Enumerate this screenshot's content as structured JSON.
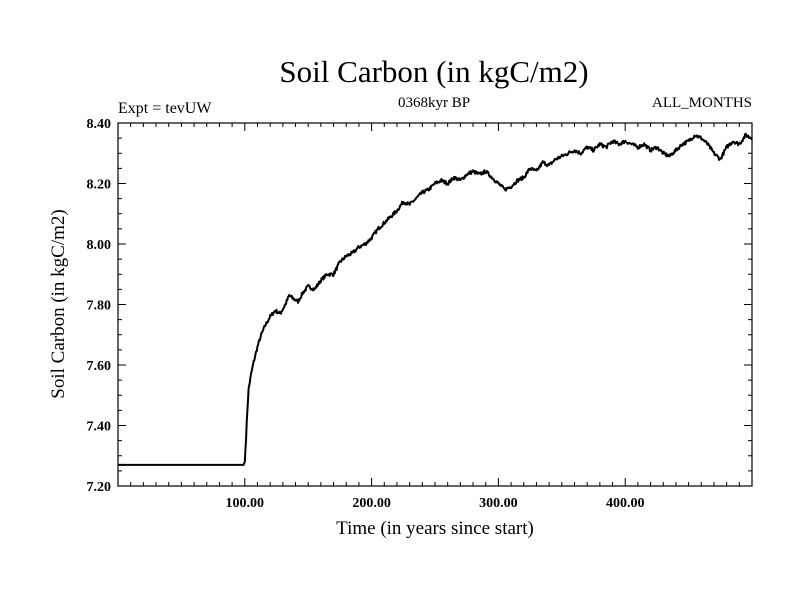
{
  "chart_data": {
    "type": "line",
    "title": "Soil Carbon (in kgC/m2)",
    "subtitle_left": "Expt = tevUW",
    "subtitle_center": "0368kyr BP",
    "subtitle_right": "ALL_MONTHS",
    "xlabel": "Time (in years since start)",
    "ylabel": "Soil Carbon (in kgC/m2)",
    "xlim": [
      0,
      500
    ],
    "ylim": [
      7.2,
      8.4
    ],
    "x_ticks": [
      {
        "value": 100,
        "label": "100.00"
      },
      {
        "value": 200,
        "label": "200.00"
      },
      {
        "value": 300,
        "label": "300.00"
      },
      {
        "value": 400,
        "label": "400.00"
      }
    ],
    "y_ticks": [
      {
        "value": 7.2,
        "label": "7.20"
      },
      {
        "value": 7.4,
        "label": "7.40"
      },
      {
        "value": 7.6,
        "label": "7.60"
      },
      {
        "value": 7.8,
        "label": "7.80"
      },
      {
        "value": 8.0,
        "label": "8.00"
      },
      {
        "value": 8.2,
        "label": "8.20"
      },
      {
        "value": 8.4,
        "label": "8.40"
      }
    ],
    "series": [
      {
        "name": "Soil Carbon",
        "color": "#000000",
        "x": [
          0,
          99,
          100,
          101,
          102,
          103,
          105,
          107,
          110,
          113,
          116,
          120,
          124,
          128,
          132,
          135,
          138,
          142,
          146,
          150,
          155,
          160,
          165,
          170,
          175,
          180,
          185,
          190,
          195,
          200,
          205,
          210,
          215,
          220,
          225,
          230,
          235,
          240,
          245,
          250,
          255,
          260,
          265,
          270,
          275,
          280,
          285,
          290,
          295,
          300,
          305,
          310,
          315,
          320,
          325,
          330,
          335,
          340,
          345,
          350,
          355,
          360,
          365,
          370,
          375,
          380,
          385,
          390,
          395,
          400,
          405,
          410,
          415,
          420,
          425,
          430,
          435,
          440,
          445,
          450,
          455,
          460,
          465,
          470,
          475,
          480,
          485,
          490,
          495,
          500
        ],
        "y": [
          7.27,
          7.27,
          7.28,
          7.36,
          7.45,
          7.52,
          7.57,
          7.61,
          7.66,
          7.7,
          7.73,
          7.76,
          7.78,
          7.77,
          7.8,
          7.83,
          7.82,
          7.81,
          7.84,
          7.86,
          7.85,
          7.88,
          7.9,
          7.9,
          7.94,
          7.96,
          7.97,
          7.99,
          8.0,
          8.02,
          8.05,
          8.07,
          8.09,
          8.11,
          8.14,
          8.13,
          8.15,
          8.17,
          8.18,
          8.2,
          8.21,
          8.2,
          8.22,
          8.21,
          8.23,
          8.24,
          8.23,
          8.24,
          8.22,
          8.2,
          8.18,
          8.19,
          8.21,
          8.22,
          8.25,
          8.24,
          8.27,
          8.26,
          8.28,
          8.29,
          8.3,
          8.31,
          8.3,
          8.32,
          8.31,
          8.33,
          8.32,
          8.34,
          8.33,
          8.34,
          8.33,
          8.32,
          8.33,
          8.31,
          8.32,
          8.3,
          8.29,
          8.31,
          8.33,
          8.34,
          8.36,
          8.35,
          8.33,
          8.3,
          8.28,
          8.32,
          8.34,
          8.33,
          8.36,
          8.35
        ]
      }
    ]
  }
}
